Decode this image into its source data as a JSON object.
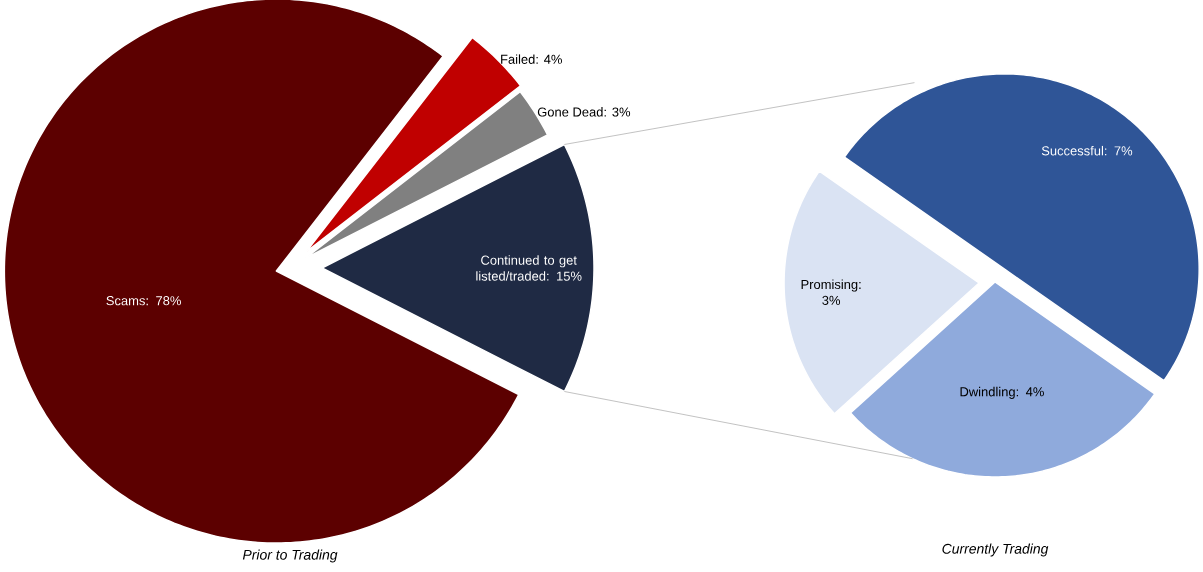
{
  "chart_data": [
    {
      "type": "pie",
      "title": "Prior to Trading",
      "categories": [
        "Scams: 78%",
        "Failed: 4%",
        "Gone Dead: 3%",
        "Continued to get listed/traded: 15%"
      ],
      "values": [
        78,
        4,
        3,
        15
      ],
      "colors": [
        "#5c0000",
        "#c00000",
        "#808080",
        "#1f2a44"
      ]
    },
    {
      "type": "pie",
      "title": "Currently Trading",
      "categories": [
        "Successful: 7%",
        "Dwindling: 4%",
        "Promising: 3%"
      ],
      "values": [
        7,
        4,
        3
      ],
      "colors": [
        "#2f5597",
        "#8faadc",
        "#dae3f3"
      ]
    }
  ]
}
